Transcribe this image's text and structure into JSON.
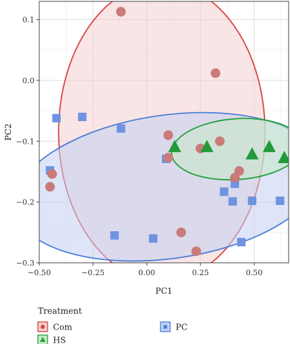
{
  "chart_data": {
    "type": "scatter",
    "title": "",
    "xlabel": "PC1",
    "ylabel": "PC2",
    "xlim": [
      -0.5,
      0.66
    ],
    "ylim": [
      -0.3,
      0.13
    ],
    "x_ticks": [
      -0.5,
      -0.25,
      0.0,
      0.25,
      0.5
    ],
    "x_tick_labels": [
      "−0.50",
      "−0.25",
      "0.00",
      "0.25",
      "0.50"
    ],
    "y_ticks": [
      0.1,
      0.0,
      -0.1,
      -0.2,
      -0.3
    ],
    "y_tick_labels": [
      "0.1",
      "0.0",
      "−0.1",
      "−0.2",
      "−0.3"
    ],
    "grid": true,
    "legend": {
      "title": "Treatment",
      "placement": "bottom-left"
    },
    "series": [
      {
        "name": "Com",
        "marker": "circle",
        "color": "#d9413f",
        "fill": "#c97a79",
        "ellipse_fill": "#f4cfcf",
        "ellipse": {
          "center": [
            0.07,
            -0.085
          ],
          "radii": [
            0.48,
            0.245
          ],
          "angle_deg": 0
        },
        "points": [
          [
            -0.12,
            0.113
          ],
          [
            0.32,
            0.012
          ],
          [
            0.1,
            -0.09
          ],
          [
            0.1,
            -0.127
          ],
          [
            0.25,
            -0.112
          ],
          [
            0.34,
            -0.1
          ],
          [
            0.43,
            -0.149
          ],
          [
            0.41,
            -0.16
          ],
          [
            -0.44,
            -0.154
          ],
          [
            -0.45,
            -0.175
          ],
          [
            0.16,
            -0.25
          ],
          [
            0.23,
            -0.281
          ]
        ]
      },
      {
        "name": "HS",
        "marker": "triangle",
        "color": "#22a03c",
        "fill": "#229a3a",
        "ellipse_fill": "#c6e9c6",
        "ellipse": {
          "center": [
            0.42,
            -0.113
          ],
          "radii": [
            0.305,
            0.05
          ],
          "angle_deg": 4
        },
        "points": [
          [
            0.13,
            -0.11
          ],
          [
            0.28,
            -0.11
          ],
          [
            0.49,
            -0.122
          ],
          [
            0.57,
            -0.11
          ],
          [
            0.64,
            -0.128
          ]
        ]
      },
      {
        "name": "PC",
        "marker": "square",
        "color": "#4a7fd8",
        "fill": "#6e93e0",
        "ellipse_fill": "#c2d0f2",
        "ellipse": {
          "center": [
            0.1,
            -0.175
          ],
          "radii": [
            0.72,
            0.118
          ],
          "angle_deg": 8
        },
        "points": [
          [
            -0.42,
            -0.062
          ],
          [
            -0.3,
            -0.06
          ],
          [
            -0.12,
            -0.079
          ],
          [
            0.09,
            -0.129
          ],
          [
            -0.45,
            -0.148
          ],
          [
            0.36,
            -0.183
          ],
          [
            0.41,
            -0.17
          ],
          [
            0.4,
            -0.199
          ],
          [
            0.49,
            -0.198
          ],
          [
            0.62,
            -0.198
          ],
          [
            -0.15,
            -0.255
          ],
          [
            0.03,
            -0.26
          ],
          [
            0.44,
            -0.266
          ]
        ]
      }
    ]
  }
}
